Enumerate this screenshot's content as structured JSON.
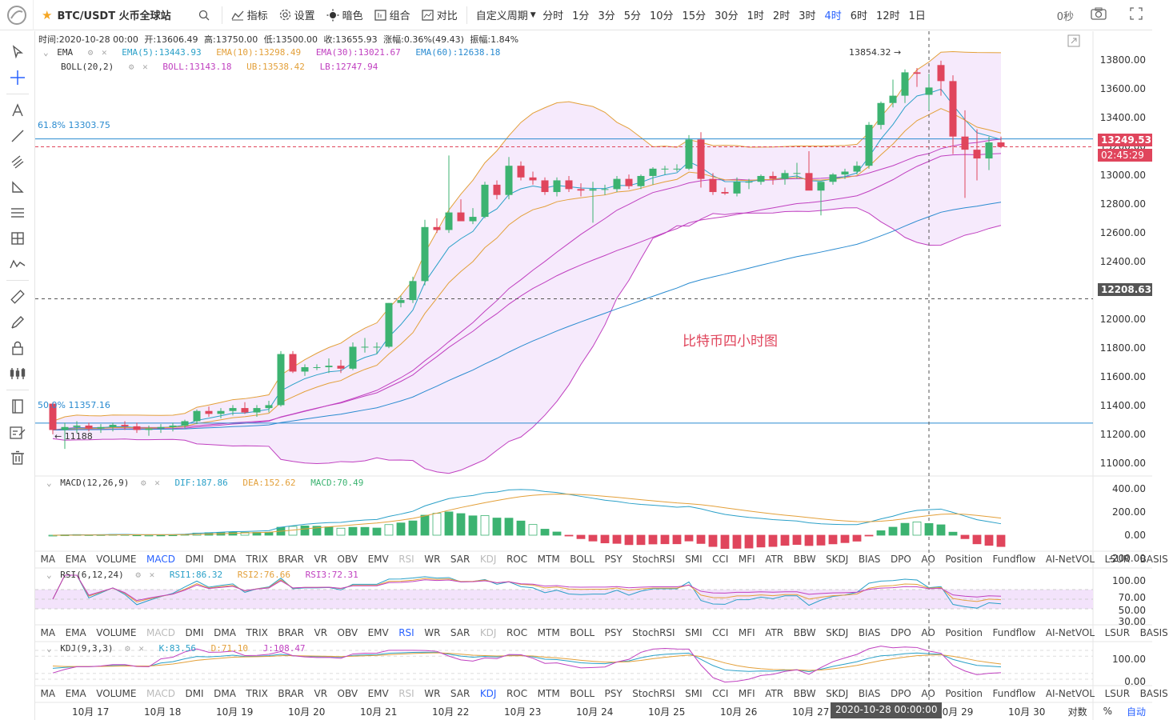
{
  "toolbar": {
    "symbol": "BTC/USDT 火币全球站",
    "indicators_label": "指标",
    "settings_label": "设置",
    "dark_label": "暗色",
    "combo_label": "组合",
    "compare_label": "对比",
    "custom_period_label": "自定义周期",
    "periods": [
      "分时",
      "1分",
      "3分",
      "5分",
      "10分",
      "15分",
      "30分",
      "1时",
      "2时",
      "3时",
      "4时",
      "6时",
      "12时",
      "1日"
    ],
    "active_period": "4时",
    "countdown": "0秒"
  },
  "ohlc": {
    "time": "时间:2020-10-28 00:00",
    "open": "开:13606.49",
    "high": "高:13750.00",
    "low": "低:13500.00",
    "close": "收:13655.93",
    "change": "涨幅:0.36%(49.43)",
    "amplitude": "振幅:1.84%"
  },
  "legend": {
    "ema_name": "EMA",
    "ema5": "EMA(5):13443.93",
    "ema10": "EMA(10):13298.49",
    "ema30": "EMA(30):13021.67",
    "ema60": "EMA(60):12638.18",
    "boll_name": "BOLL(20,2)",
    "boll": "BOLL:13143.18",
    "ub": "UB:13538.42",
    "lb": "LB:12747.94",
    "macd_name": "MACD(12,26,9)",
    "dif": "DIF:187.86",
    "dea": "DEA:152.62",
    "macd": "MACD:70.49",
    "rsi_name": "RSI(6,12,24)",
    "rsi1": "RSI1:86.32",
    "rsi2": "RSI2:76.66",
    "rsi3": "RSI3:72.31",
    "kdj_name": "KDJ(9,3,3)",
    "k": "K:83.56",
    "d": "D:71.10",
    "j": "J:108.47"
  },
  "annotations": {
    "fib618": "61.8% 13303.75",
    "fib50": "50.0% 11357.16",
    "high_marker": "13854.32 →",
    "low_marker": "← 11188",
    "chart_note": "比特币四小时图"
  },
  "price_axis": [
    "13800.00",
    "13600.00",
    "13400.00",
    "13200.00",
    "13000.00",
    "12800.00",
    "12600.00",
    "12400.00",
    "12200.00",
    "12000.00",
    "11800.00",
    "11600.00",
    "11400.00",
    "11200.00",
    "11000.00"
  ],
  "price_tags": {
    "last": "13249.53",
    "countdown": "02:45:29",
    "cursor": "12208.63"
  },
  "macd_axis": [
    "400.00",
    "200.00",
    "0.00",
    "-200.00"
  ],
  "rsi_axis": [
    "100.00",
    "70.00",
    "50.00",
    "30.00"
  ],
  "kdj_axis": [
    "100.00",
    "0.00"
  ],
  "indicator_tabs": [
    "MA",
    "EMA",
    "VOLUME",
    "MACD",
    "DMI",
    "DMA",
    "TRIX",
    "BRAR",
    "VR",
    "OBV",
    "EMV",
    "RSI",
    "WR",
    "SAR",
    "KDJ",
    "ROC",
    "MTM",
    "BOLL",
    "PSY",
    "StochRSI",
    "SMI",
    "CCI",
    "MFI",
    "ATR",
    "BBW",
    "SKDJ",
    "BIAS",
    "DPO",
    "AO",
    "Position",
    "Fundflow",
    "AI-NetVOL",
    "LSUR",
    "BASIS"
  ],
  "time_axis": [
    "10月 17",
    "10月 18",
    "10月 19",
    "10月 20",
    "10月 21",
    "10月 22",
    "10月 23",
    "10月 24",
    "10月 25",
    "10月 26",
    "10月 27",
    "10月 29",
    "10月 30"
  ],
  "cursor_time": "2020-10-28 00:00:00",
  "bottom_right": {
    "log": "对数",
    "pct": "%",
    "auto": "自动"
  },
  "colors": {
    "up": "#3cb371",
    "down": "#e0455c",
    "accent": "#2962ff",
    "boll_fill": "#f3e3fb"
  },
  "chart_data": {
    "type": "candlestick",
    "interval": "4h",
    "ylim": [
      11000,
      13850
    ],
    "candles": [
      [
        11490,
        11500,
        11280,
        11310
      ],
      [
        11310,
        11360,
        11180,
        11330
      ],
      [
        11330,
        11370,
        11290,
        11340
      ],
      [
        11340,
        11360,
        11300,
        11320
      ],
      [
        11320,
        11350,
        11290,
        11330
      ],
      [
        11330,
        11360,
        11300,
        11345
      ],
      [
        11345,
        11370,
        11310,
        11335
      ],
      [
        11335,
        11360,
        11290,
        11310
      ],
      [
        11310,
        11340,
        11270,
        11320
      ],
      [
        11320,
        11350,
        11290,
        11330
      ],
      [
        11330,
        11360,
        11300,
        11340
      ],
      [
        11340,
        11380,
        11320,
        11370
      ],
      [
        11370,
        11450,
        11350,
        11440
      ],
      [
        11440,
        11470,
        11400,
        11420
      ],
      [
        11420,
        11460,
        11390,
        11440
      ],
      [
        11440,
        11480,
        11410,
        11460
      ],
      [
        11460,
        11500,
        11420,
        11430
      ],
      [
        11430,
        11480,
        11400,
        11460
      ],
      [
        11460,
        11510,
        11430,
        11480
      ],
      [
        11480,
        11850,
        11470,
        11830
      ],
      [
        11830,
        11850,
        11700,
        11710
      ],
      [
        11710,
        11760,
        11680,
        11740
      ],
      [
        11740,
        11760,
        11720,
        11740
      ],
      [
        11740,
        11800,
        11700,
        11750
      ],
      [
        11750,
        11790,
        11700,
        11730
      ],
      [
        11730,
        11910,
        11720,
        11880
      ],
      [
        11880,
        11940,
        11840,
        11880
      ],
      [
        11880,
        11910,
        11830,
        11880
      ],
      [
        11880,
        12180,
        11870,
        12180
      ],
      [
        12180,
        12230,
        12150,
        12200
      ],
      [
        12200,
        12360,
        12180,
        12330
      ],
      [
        12330,
        12750,
        12300,
        12700
      ],
      [
        12700,
        12760,
        12660,
        12680
      ],
      [
        12680,
        13190,
        12660,
        12800
      ],
      [
        12800,
        12890,
        12740,
        12740
      ],
      [
        12740,
        12830,
        12720,
        12770
      ],
      [
        12770,
        13010,
        12760,
        12990
      ],
      [
        12990,
        13020,
        12890,
        12920
      ],
      [
        12920,
        13180,
        12890,
        13120
      ],
      [
        13120,
        13150,
        13020,
        13040
      ],
      [
        13040,
        13080,
        12990,
        13020
      ],
      [
        13020,
        13040,
        12920,
        12940
      ],
      [
        12940,
        13040,
        12910,
        13020
      ],
      [
        13020,
        13050,
        12940,
        12960
      ],
      [
        12960,
        13000,
        12910,
        12950
      ],
      [
        12950,
        13010,
        12730,
        12960
      ],
      [
        12960,
        12990,
        12920,
        12960
      ],
      [
        12960,
        13050,
        12940,
        13030
      ],
      [
        13030,
        13060,
        12960,
        12980
      ],
      [
        12980,
        13060,
        12960,
        13050
      ],
      [
        13050,
        13110,
        12990,
        13100
      ],
      [
        13100,
        13120,
        13060,
        13100
      ],
      [
        13100,
        13130,
        13080,
        13100
      ],
      [
        13100,
        13330,
        13090,
        13300
      ],
      [
        13300,
        13350,
        12970,
        13030
      ],
      [
        13030,
        13070,
        12920,
        12940
      ],
      [
        12940,
        12970,
        12920,
        12930
      ],
      [
        12930,
        13040,
        12910,
        13010
      ],
      [
        13010,
        13030,
        12960,
        13010
      ],
      [
        13010,
        13060,
        12990,
        13050
      ],
      [
        13050,
        13080,
        12990,
        13030
      ],
      [
        13030,
        13090,
        12990,
        13070
      ],
      [
        13070,
        13140,
        13030,
        13070
      ],
      [
        13070,
        13220,
        12970,
        12950
      ],
      [
        12950,
        13000,
        12780,
        13010
      ],
      [
        13010,
        13070,
        12990,
        13060
      ],
      [
        13060,
        13100,
        13030,
        13080
      ],
      [
        13080,
        13150,
        13060,
        13120
      ],
      [
        13120,
        13420,
        13100,
        13400
      ],
      [
        13400,
        13560,
        13370,
        13550
      ],
      [
        13550,
        13710,
        13520,
        13600
      ],
      [
        13600,
        13780,
        13550,
        13760
      ],
      [
        13760,
        13790,
        13660,
        13750
      ],
      [
        13606,
        13750,
        13500,
        13656
      ],
      [
        13810,
        13840,
        13600,
        13700
      ],
      [
        13700,
        13740,
        13200,
        13320
      ],
      [
        13320,
        13500,
        12900,
        13230
      ],
      [
        13230,
        13370,
        13020,
        13170
      ],
      [
        13170,
        13320,
        13090,
        13280
      ],
      [
        13280,
        13320,
        13240,
        13250
      ]
    ]
  }
}
